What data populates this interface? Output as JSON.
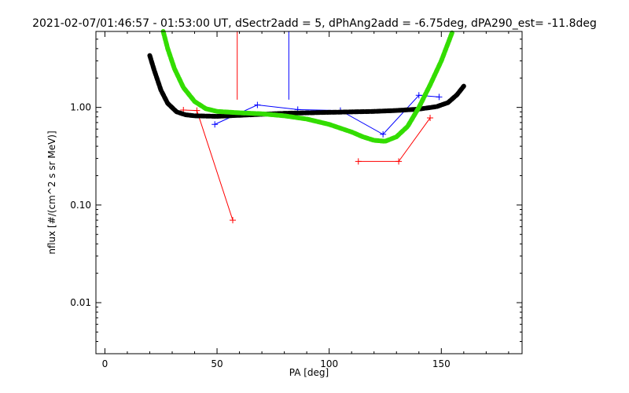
{
  "chart_data": {
    "type": "line",
    "title": "2021-02-07/01:46:57 - 01:53:00 UT, dSectr2add = 5, dPhAng2add = -6.75deg, dPA290_est= -11.8deg",
    "xlabel": "PA [deg]",
    "ylabel": "nflux [#/(cm^2 s sr MeV)]",
    "xlim": [
      -4,
      186
    ],
    "ylim": [
      0.003,
      6
    ],
    "yscale": "log",
    "grid": false,
    "x_ticks": [
      0,
      50,
      100,
      150
    ],
    "y_ticks": [
      0.01,
      0.1,
      1.0
    ],
    "x_tick_labels": [
      "0",
      "50",
      "100",
      "150"
    ],
    "y_tick_labels": [
      "0.01",
      "0.10",
      "1.00"
    ],
    "series": [
      {
        "color": "#0000ff",
        "style": "line-plus",
        "points": [
          [
            49,
            0.67
          ],
          [
            68,
            1.06
          ],
          [
            86,
            0.95
          ],
          [
            105,
            0.93
          ],
          [
            124,
            0.53
          ],
          [
            140,
            1.33
          ],
          [
            149,
            1.28
          ]
        ]
      },
      {
        "color": "#0000ff",
        "style": "errorbar",
        "points": [
          [
            82,
            1.2,
            6
          ]
        ]
      },
      {
        "color": "#ff0000",
        "style": "line-plus",
        "points": [
          [
            35,
            0.94
          ],
          [
            41,
            0.93
          ],
          [
            57,
            0.07
          ]
        ]
      },
      {
        "color": "#ff0000",
        "style": "line-plus",
        "points": [
          [
            113,
            0.28
          ],
          [
            131,
            0.28
          ],
          [
            145,
            0.78
          ]
        ]
      },
      {
        "color": "#ff0000",
        "style": "errorbar",
        "points": [
          [
            59,
            1.2,
            6
          ]
        ]
      },
      {
        "color": "#000000",
        "style": "thick-dashed",
        "points": [
          [
            20,
            3.4
          ],
          [
            22,
            2.4
          ],
          [
            25,
            1.5
          ],
          [
            28,
            1.1
          ],
          [
            32,
            0.9
          ],
          [
            36,
            0.84
          ],
          [
            40,
            0.82
          ],
          [
            50,
            0.81
          ],
          [
            60,
            0.83
          ],
          [
            70,
            0.85
          ],
          [
            80,
            0.87
          ],
          [
            90,
            0.88
          ],
          [
            100,
            0.89
          ],
          [
            110,
            0.9
          ],
          [
            120,
            0.91
          ],
          [
            130,
            0.93
          ],
          [
            140,
            0.96
          ],
          [
            148,
            1.02
          ],
          [
            153,
            1.12
          ],
          [
            157,
            1.35
          ],
          [
            160,
            1.65
          ]
        ]
      },
      {
        "color": "#33dd00",
        "style": "thick-dashed",
        "points": [
          [
            26,
            6
          ],
          [
            28,
            4
          ],
          [
            31,
            2.5
          ],
          [
            35,
            1.6
          ],
          [
            40,
            1.15
          ],
          [
            45,
            0.97
          ],
          [
            50,
            0.91
          ],
          [
            60,
            0.88
          ],
          [
            70,
            0.86
          ],
          [
            80,
            0.82
          ],
          [
            90,
            0.76
          ],
          [
            100,
            0.67
          ],
          [
            110,
            0.56
          ],
          [
            115,
            0.5
          ],
          [
            120,
            0.46
          ],
          [
            125,
            0.45
          ],
          [
            130,
            0.5
          ],
          [
            135,
            0.64
          ],
          [
            140,
            1.0
          ],
          [
            145,
            1.7
          ],
          [
            150,
            3.0
          ],
          [
            155,
            6
          ]
        ]
      }
    ]
  }
}
